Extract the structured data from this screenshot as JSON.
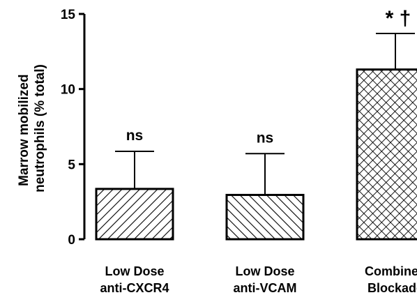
{
  "chart_data": {
    "type": "bar",
    "ylabel_lines": [
      "Marrow mobilized",
      "neutrophils (% total)"
    ],
    "ylim": [
      0,
      15
    ],
    "yticks": [
      0,
      5,
      10,
      15
    ],
    "categories": [
      {
        "lines": [
          "Low Dose",
          "anti-CXCR4"
        ]
      },
      {
        "lines": [
          "Low Dose",
          "anti-VCAM"
        ]
      },
      {
        "lines": [
          "Combined",
          "Blockade"
        ]
      }
    ],
    "values": [
      3.35,
      2.95,
      11.3
    ],
    "errors": [
      2.5,
      2.75,
      2.4
    ],
    "patterns": [
      "diag-back",
      "diag-fwd",
      "crosshatch"
    ],
    "annotations": [
      "ns",
      "ns",
      "* †"
    ],
    "grid": false,
    "legend": "none"
  }
}
